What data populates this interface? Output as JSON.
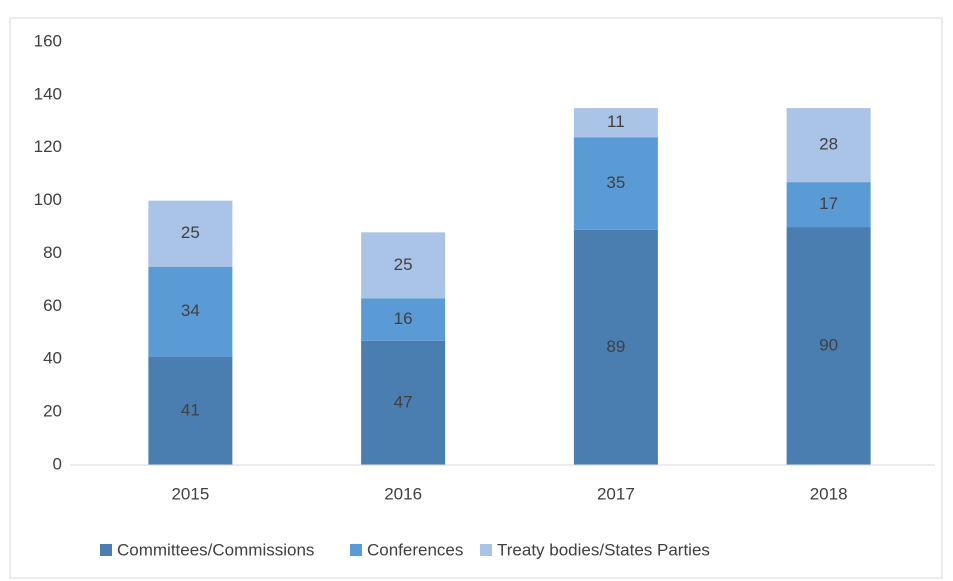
{
  "chart_data": {
    "type": "bar",
    "stacked": true,
    "categories": [
      "2015",
      "2016",
      "2017",
      "2018"
    ],
    "series": [
      {
        "name": "Committees/Commissions",
        "color": "#4a7eb1",
        "values": [
          41,
          47,
          89,
          90
        ]
      },
      {
        "name": "Conferences",
        "color": "#5b9bd5",
        "values": [
          34,
          16,
          35,
          17
        ]
      },
      {
        "name": "Treaty bodies/States Parties",
        "color": "#a9c4e6",
        "values": [
          25,
          25,
          11,
          28
        ]
      }
    ],
    "ylim": [
      0,
      160
    ],
    "yticks": [
      0,
      20,
      40,
      60,
      80,
      100,
      120,
      140,
      160
    ],
    "grid": false,
    "legend": "bottom",
    "data_labels": true
  }
}
